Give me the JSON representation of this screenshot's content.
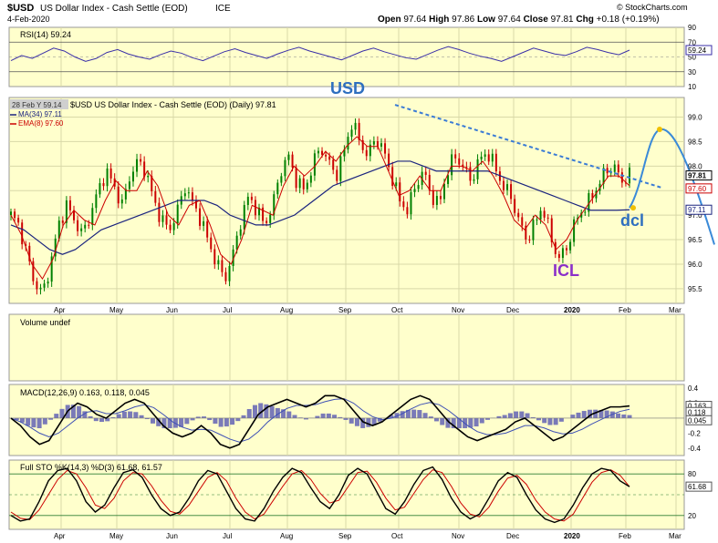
{
  "header": {
    "symbol": "$USD",
    "name": "US Dollar Index - Cash Settle (EOD)",
    "exchange": "ICE",
    "date": "4-Feb-2020",
    "copyright": "© StockCharts.com",
    "ohlc": {
      "open_label": "Open",
      "open": "97.64",
      "high_label": "High",
      "high": "97.86",
      "low_label": "Low",
      "low": "97.64",
      "close_label": "Close",
      "close": "97.81",
      "chg_label": "Chg",
      "chg": "+0.18 (+0.19%)"
    }
  },
  "colors": {
    "panel_bg": "#ffffcc",
    "grid": "#d8d8a8",
    "up": "#008000",
    "down": "#cc0000",
    "ma": "#1a237e",
    "ema": "#cc0000",
    "rsi_line": "#3a2fa8",
    "macd_hist": "#7a7ab8",
    "trendline": "#3a7bd5",
    "projection": "#3a8ad8",
    "annot_usd": "#2e6fbf",
    "annot_icl": "#8b2fc9",
    "annot_dcl": "#2e6fbf",
    "projection_point": "#f0c000"
  },
  "chart_data": [
    {
      "type": "line",
      "panel": "rsi",
      "title": "RSI(14) 59.24",
      "series": [
        {
          "name": "RSI(14)",
          "values": [
            45,
            52,
            48,
            55,
            62,
            58,
            50,
            44,
            48,
            56,
            60,
            54,
            50,
            47,
            53,
            58,
            55,
            49,
            45,
            51,
            57,
            61,
            56,
            52,
            48,
            54,
            59,
            63,
            58,
            54,
            50,
            46,
            52,
            58,
            62,
            57,
            53,
            49,
            47,
            53,
            59,
            64,
            60,
            55,
            51,
            48,
            44,
            50,
            56,
            62,
            58,
            54,
            52,
            57,
            63,
            60,
            56,
            53,
            59.24
          ]
        }
      ],
      "ylim": [
        10,
        90
      ],
      "yticks": [
        "90",
        "70",
        "50",
        "30",
        "10"
      ],
      "last_value_label": "59.24"
    },
    {
      "type": "candlestick",
      "panel": "price",
      "title": "$USD US Dollar Index - Cash Settle (EOD) (Daily) 97.81",
      "legend": [
        "28 Feb Y 59.14",
        "MA(34) 97.11",
        "EMA(8) 97.60"
      ],
      "ylim": [
        95.2,
        99.4
      ],
      "yticks": [
        "99.0",
        "98.5",
        "98.0",
        "97.5",
        "97.0",
        "96.5",
        "96.0",
        "95.5"
      ],
      "x": [
        "Apr",
        "May",
        "Jun",
        "Jul",
        "Aug",
        "Sep",
        "Oct",
        "Nov",
        "Dec",
        "2020",
        "Feb",
        "Mar"
      ],
      "close_path": [
        97.0,
        96.8,
        96.2,
        95.6,
        95.4,
        96.0,
        96.8,
        97.2,
        96.9,
        96.6,
        97.0,
        97.5,
        97.9,
        97.6,
        97.2,
        97.8,
        98.1,
        97.9,
        97.3,
        96.9,
        96.7,
        97.1,
        97.6,
        97.2,
        96.9,
        96.4,
        96.0,
        95.7,
        96.2,
        96.9,
        97.4,
        97.1,
        96.8,
        97.2,
        97.9,
        98.2,
        97.7,
        97.5,
        98.0,
        98.4,
        98.1,
        97.8,
        98.3,
        98.9,
        98.5,
        98.2,
        98.6,
        98.3,
        97.8,
        97.3,
        97.1,
        97.6,
        97.9,
        97.4,
        97.2,
        97.9,
        98.2,
        98.0,
        97.7,
        98.1,
        98.3,
        98.0,
        97.6,
        97.4,
        96.9,
        96.5,
        96.8,
        97.2,
        96.6,
        96.1,
        96.3,
        96.8,
        97.1,
        97.3,
        97.6,
        97.9,
        98.0,
        97.7,
        97.81
      ],
      "ma_path": [
        96.8,
        96.7,
        96.5,
        96.3,
        96.2,
        96.3,
        96.5,
        96.7,
        96.8,
        96.9,
        97.0,
        97.1,
        97.2,
        97.3,
        97.3,
        97.3,
        97.2,
        97.0,
        96.9,
        96.8,
        96.8,
        96.9,
        97.0,
        97.2,
        97.4,
        97.6,
        97.7,
        97.8,
        97.9,
        98.0,
        98.1,
        98.1,
        98.0,
        97.9,
        97.9,
        97.9,
        97.9,
        97.9,
        97.8,
        97.7,
        97.6,
        97.5,
        97.4,
        97.3,
        97.2,
        97.1,
        97.1,
        97.1,
        97.11
      ],
      "ema_path": [
        97.0,
        96.6,
        96.0,
        95.7,
        96.1,
        96.8,
        97.1,
        96.9,
        96.8,
        97.3,
        97.7,
        97.5,
        97.5,
        97.9,
        97.6,
        97.0,
        96.8,
        97.2,
        97.3,
        96.8,
        96.2,
        96.0,
        96.5,
        97.2,
        97.1,
        97.0,
        97.6,
        98.0,
        97.8,
        98.0,
        98.3,
        98.1,
        98.4,
        98.6,
        98.4,
        98.4,
        97.9,
        97.4,
        97.5,
        97.8,
        97.5,
        97.5,
        98.0,
        98.0,
        97.9,
        98.1,
        97.8,
        97.4,
        96.9,
        96.7,
        97.0,
        96.8,
        96.3,
        96.5,
        96.9,
        97.2,
        97.5,
        97.8,
        97.8,
        97.6
      ],
      "annotations": [
        {
          "text": "USD",
          "note": "title annotation near Sep high"
        },
        {
          "text": "ICL",
          "note": "low near end of Dec"
        },
        {
          "text": "dcl",
          "note": "near Feb"
        }
      ],
      "price_labels": [
        "97.81",
        "97.60",
        "97.11"
      ]
    },
    {
      "type": "bar",
      "panel": "volume",
      "title": "Volume undef"
    },
    {
      "type": "line",
      "panel": "macd",
      "title": "MACD(12,26,9) 0.163, 0.118, 0.045",
      "series": [
        {
          "name": "MACD(12,26,9)",
          "values": [
            0.0,
            -0.1,
            -0.25,
            -0.35,
            -0.3,
            -0.1,
            0.1,
            0.2,
            0.15,
            0.05,
            0.0,
            0.1,
            0.2,
            0.25,
            0.2,
            0.05,
            -0.1,
            -0.2,
            -0.25,
            -0.2,
            -0.1,
            -0.2,
            -0.35,
            -0.4,
            -0.35,
            -0.15,
            0.05,
            0.15,
            0.2,
            0.25,
            0.2,
            0.15,
            0.2,
            0.3,
            0.3,
            0.25,
            0.1,
            -0.05,
            -0.1,
            -0.05,
            0.05,
            0.15,
            0.25,
            0.3,
            0.25,
            0.1,
            -0.05,
            -0.15,
            -0.25,
            -0.3,
            -0.25,
            -0.2,
            -0.15,
            -0.05,
            0.0,
            -0.1,
            -0.2,
            -0.3,
            -0.25,
            -0.15,
            -0.05,
            0.05,
            0.1,
            0.15,
            0.15,
            0.163
          ]
        },
        {
          "name": "signal",
          "values": [
            0.0,
            -0.05,
            -0.12,
            -0.2,
            -0.25,
            -0.2,
            -0.1,
            0.0,
            0.08,
            0.1,
            0.06,
            0.06,
            0.1,
            0.15,
            0.18,
            0.14,
            0.05,
            -0.05,
            -0.12,
            -0.16,
            -0.15,
            -0.16,
            -0.22,
            -0.28,
            -0.32,
            -0.28,
            -0.18,
            -0.05,
            0.05,
            0.13,
            0.17,
            0.17,
            0.18,
            0.22,
            0.25,
            0.26,
            0.2,
            0.1,
            0.02,
            -0.02,
            0.0,
            0.05,
            0.12,
            0.18,
            0.21,
            0.18,
            0.1,
            0.0,
            -0.1,
            -0.18,
            -0.22,
            -0.22,
            -0.2,
            -0.15,
            -0.1,
            -0.1,
            -0.13,
            -0.18,
            -0.21,
            -0.2,
            -0.15,
            -0.08,
            -0.02,
            0.04,
            0.09,
            0.118
          ]
        }
      ],
      "ylim": [
        -0.5,
        0.45
      ],
      "yticks": [
        "0.4",
        "0.2",
        "0.0",
        "-0.2",
        "-0.4"
      ],
      "price_labels": [
        "0.163",
        "0.118",
        "0.045"
      ]
    },
    {
      "type": "line",
      "panel": "sto",
      "title": "Full STO %K(14,3) %D(3) 61.68, 61.57",
      "series": [
        {
          "name": "%K(14,3)",
          "values": [
            20,
            12,
            15,
            40,
            70,
            85,
            88,
            70,
            40,
            25,
            35,
            60,
            82,
            86,
            75,
            50,
            30,
            20,
            25,
            45,
            70,
            85,
            80,
            55,
            30,
            15,
            12,
            30,
            55,
            75,
            88,
            82,
            60,
            40,
            30,
            50,
            78,
            88,
            80,
            55,
            30,
            22,
            40,
            65,
            85,
            90,
            72,
            45,
            25,
            15,
            22,
            45,
            70,
            82,
            75,
            50,
            28,
            15,
            10,
            15,
            35,
            60,
            80,
            88,
            85,
            70,
            61.68
          ]
        },
        {
          "name": "%D(3)",
          "values": [
            25,
            16,
            14,
            28,
            50,
            72,
            85,
            80,
            60,
            35,
            30,
            45,
            70,
            82,
            80,
            63,
            42,
            26,
            22,
            35,
            55,
            75,
            82,
            70,
            45,
            25,
            15,
            22,
            42,
            62,
            80,
            85,
            72,
            52,
            38,
            42,
            62,
            82,
            84,
            68,
            45,
            28,
            32,
            52,
            72,
            86,
            82,
            62,
            38,
            22,
            18,
            32,
            55,
            74,
            78,
            65,
            42,
            25,
            15,
            12,
            22,
            45,
            68,
            82,
            86,
            78,
            61.57
          ]
        }
      ],
      "ylim": [
        0,
        100
      ],
      "yticks": [
        "80",
        "20"
      ],
      "price_labels": [
        "61.68",
        "61.57"
      ]
    }
  ]
}
